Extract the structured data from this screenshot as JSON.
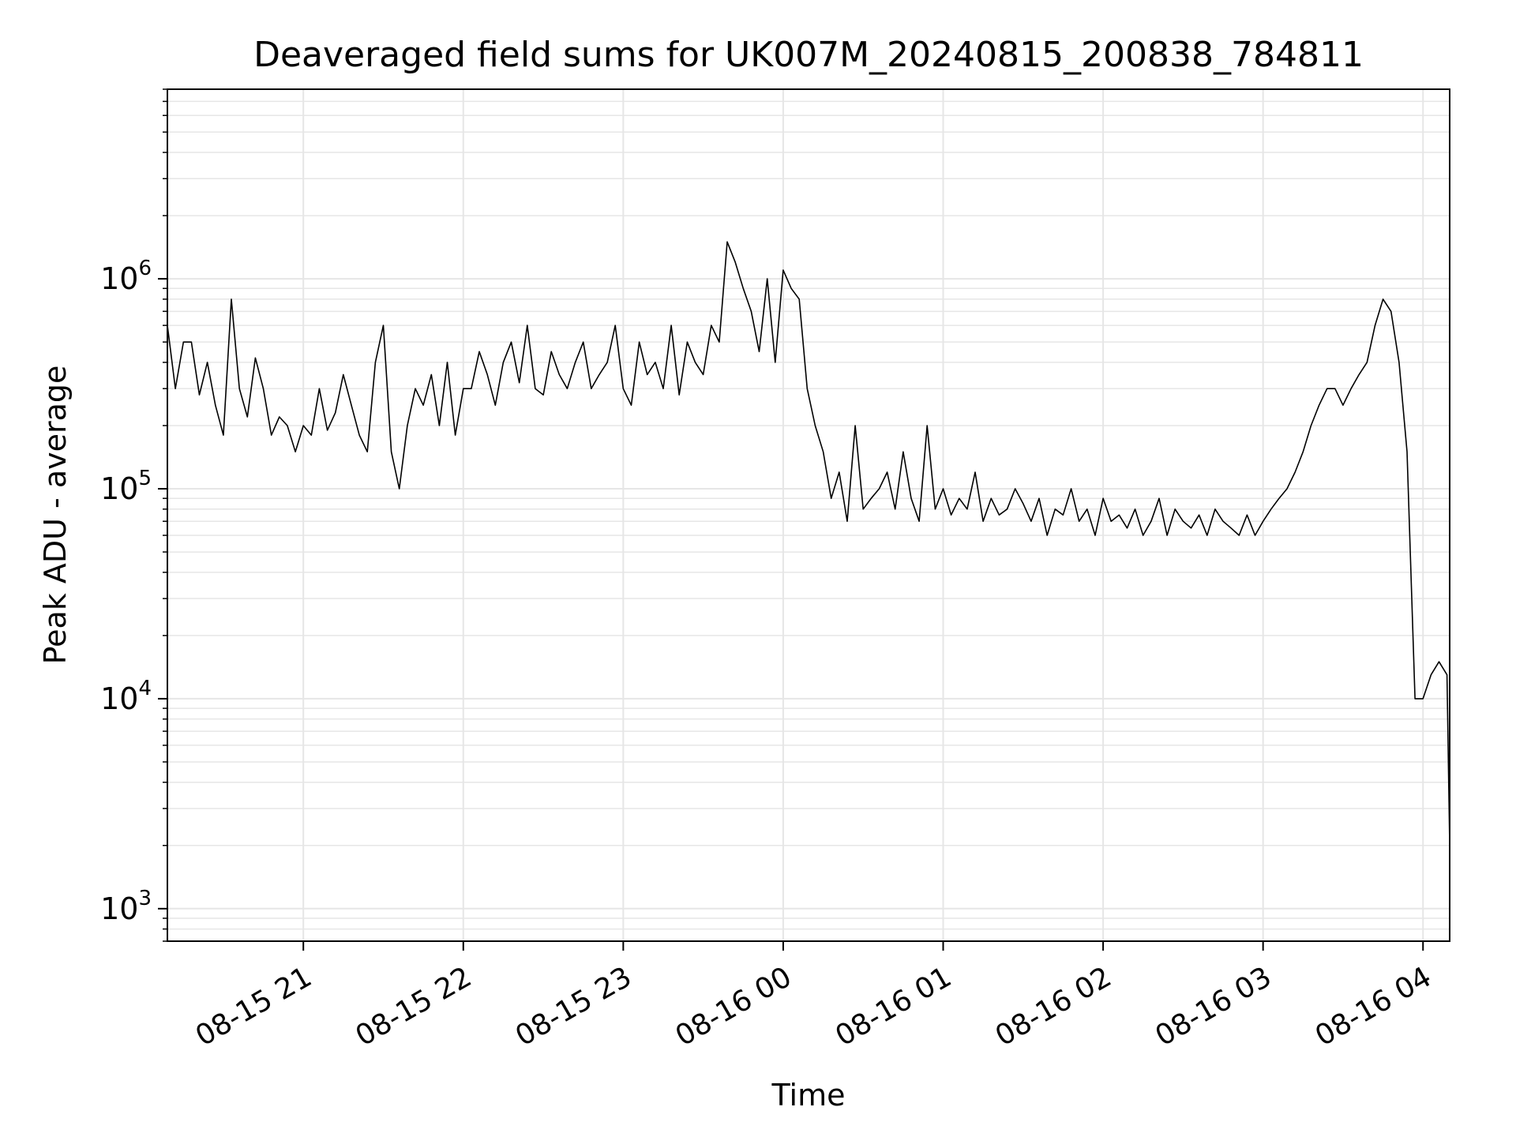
{
  "chart_data": {
    "type": "line",
    "title": "Deaveraged field sums for UK007M_20240815_200838_784811",
    "xlabel": "Time",
    "ylabel": "Peak ADU - average",
    "yscale": "log",
    "ylim": [
      700,
      8000000
    ],
    "xlim": [
      "2024-08-15T20:09:00",
      "2024-08-16T04:10:00"
    ],
    "grid": true,
    "line_color": "#000000",
    "grid_color": "#e6e6e6",
    "x_ticks": [
      {
        "t": "2024-08-15T21:00:00",
        "label": "08-15 21"
      },
      {
        "t": "2024-08-15T22:00:00",
        "label": "08-15 22"
      },
      {
        "t": "2024-08-15T23:00:00",
        "label": "08-15 23"
      },
      {
        "t": "2024-08-16T00:00:00",
        "label": "08-16 00"
      },
      {
        "t": "2024-08-16T01:00:00",
        "label": "08-16 01"
      },
      {
        "t": "2024-08-16T02:00:00",
        "label": "08-16 02"
      },
      {
        "t": "2024-08-16T03:00:00",
        "label": "08-16 03"
      },
      {
        "t": "2024-08-16T04:00:00",
        "label": "08-16 04"
      }
    ],
    "y_ticks": [
      {
        "value": 1000,
        "base": "10",
        "exp": "3"
      },
      {
        "value": 10000,
        "base": "10",
        "exp": "4"
      },
      {
        "value": 100000,
        "base": "10",
        "exp": "5"
      },
      {
        "value": 1000000,
        "base": "10",
        "exp": "6"
      }
    ],
    "series": [
      {
        "x": [
          "2024-08-15T20:09:00",
          "2024-08-15T20:12:00",
          "2024-08-15T20:15:00",
          "2024-08-15T20:18:00",
          "2024-08-15T20:21:00",
          "2024-08-15T20:24:00",
          "2024-08-15T20:27:00",
          "2024-08-15T20:30:00",
          "2024-08-15T20:33:00",
          "2024-08-15T20:36:00",
          "2024-08-15T20:39:00",
          "2024-08-15T20:42:00",
          "2024-08-15T20:45:00",
          "2024-08-15T20:48:00",
          "2024-08-15T20:51:00",
          "2024-08-15T20:54:00",
          "2024-08-15T20:57:00",
          "2024-08-15T21:00:00",
          "2024-08-15T21:03:00",
          "2024-08-15T21:06:00",
          "2024-08-15T21:09:00",
          "2024-08-15T21:12:00",
          "2024-08-15T21:15:00",
          "2024-08-15T21:18:00",
          "2024-08-15T21:21:00",
          "2024-08-15T21:24:00",
          "2024-08-15T21:27:00",
          "2024-08-15T21:30:00",
          "2024-08-15T21:33:00",
          "2024-08-15T21:36:00",
          "2024-08-15T21:39:00",
          "2024-08-15T21:42:00",
          "2024-08-15T21:45:00",
          "2024-08-15T21:48:00",
          "2024-08-15T21:51:00",
          "2024-08-15T21:54:00",
          "2024-08-15T21:57:00",
          "2024-08-15T22:00:00",
          "2024-08-15T22:03:00",
          "2024-08-15T22:06:00",
          "2024-08-15T22:09:00",
          "2024-08-15T22:12:00",
          "2024-08-15T22:15:00",
          "2024-08-15T22:18:00",
          "2024-08-15T22:21:00",
          "2024-08-15T22:24:00",
          "2024-08-15T22:27:00",
          "2024-08-15T22:30:00",
          "2024-08-15T22:33:00",
          "2024-08-15T22:36:00",
          "2024-08-15T22:39:00",
          "2024-08-15T22:42:00",
          "2024-08-15T22:45:00",
          "2024-08-15T22:48:00",
          "2024-08-15T22:51:00",
          "2024-08-15T22:54:00",
          "2024-08-15T22:57:00",
          "2024-08-15T23:00:00",
          "2024-08-15T23:03:00",
          "2024-08-15T23:06:00",
          "2024-08-15T23:09:00",
          "2024-08-15T23:12:00",
          "2024-08-15T23:15:00",
          "2024-08-15T23:18:00",
          "2024-08-15T23:21:00",
          "2024-08-15T23:24:00",
          "2024-08-15T23:27:00",
          "2024-08-15T23:30:00",
          "2024-08-15T23:33:00",
          "2024-08-15T23:36:00",
          "2024-08-15T23:39:00",
          "2024-08-15T23:42:00",
          "2024-08-15T23:45:00",
          "2024-08-15T23:48:00",
          "2024-08-15T23:51:00",
          "2024-08-15T23:54:00",
          "2024-08-15T23:57:00",
          "2024-08-16T00:00:00",
          "2024-08-16T00:03:00",
          "2024-08-16T00:06:00",
          "2024-08-16T00:09:00",
          "2024-08-16T00:12:00",
          "2024-08-16T00:15:00",
          "2024-08-16T00:18:00",
          "2024-08-16T00:21:00",
          "2024-08-16T00:24:00",
          "2024-08-16T00:27:00",
          "2024-08-16T00:30:00",
          "2024-08-16T00:33:00",
          "2024-08-16T00:36:00",
          "2024-08-16T00:39:00",
          "2024-08-16T00:42:00",
          "2024-08-16T00:45:00",
          "2024-08-16T00:48:00",
          "2024-08-16T00:51:00",
          "2024-08-16T00:54:00",
          "2024-08-16T00:57:00",
          "2024-08-16T01:00:00",
          "2024-08-16T01:03:00",
          "2024-08-16T01:06:00",
          "2024-08-16T01:09:00",
          "2024-08-16T01:12:00",
          "2024-08-16T01:15:00",
          "2024-08-16T01:18:00",
          "2024-08-16T01:21:00",
          "2024-08-16T01:24:00",
          "2024-08-16T01:27:00",
          "2024-08-16T01:30:00",
          "2024-08-16T01:33:00",
          "2024-08-16T01:36:00",
          "2024-08-16T01:39:00",
          "2024-08-16T01:42:00",
          "2024-08-16T01:45:00",
          "2024-08-16T01:48:00",
          "2024-08-16T01:51:00",
          "2024-08-16T01:54:00",
          "2024-08-16T01:57:00",
          "2024-08-16T02:00:00",
          "2024-08-16T02:03:00",
          "2024-08-16T02:06:00",
          "2024-08-16T02:09:00",
          "2024-08-16T02:12:00",
          "2024-08-16T02:15:00",
          "2024-08-16T02:18:00",
          "2024-08-16T02:21:00",
          "2024-08-16T02:24:00",
          "2024-08-16T02:27:00",
          "2024-08-16T02:30:00",
          "2024-08-16T02:33:00",
          "2024-08-16T02:36:00",
          "2024-08-16T02:39:00",
          "2024-08-16T02:42:00",
          "2024-08-16T02:45:00",
          "2024-08-16T02:48:00",
          "2024-08-16T02:51:00",
          "2024-08-16T02:54:00",
          "2024-08-16T02:57:00",
          "2024-08-16T03:00:00",
          "2024-08-16T03:03:00",
          "2024-08-16T03:06:00",
          "2024-08-16T03:09:00",
          "2024-08-16T03:12:00",
          "2024-08-16T03:15:00",
          "2024-08-16T03:18:00",
          "2024-08-16T03:21:00",
          "2024-08-16T03:24:00",
          "2024-08-16T03:27:00",
          "2024-08-16T03:30:00",
          "2024-08-16T03:33:00",
          "2024-08-16T03:36:00",
          "2024-08-16T03:39:00",
          "2024-08-16T03:42:00",
          "2024-08-16T03:45:00",
          "2024-08-16T03:48:00",
          "2024-08-16T03:51:00",
          "2024-08-16T03:54:00",
          "2024-08-16T03:57:00",
          "2024-08-16T04:00:00",
          "2024-08-16T04:03:00",
          "2024-08-16T04:06:00",
          "2024-08-16T04:09:00",
          "2024-08-16T04:10:00"
        ],
        "y": [
          600000,
          300000,
          500000,
          500000,
          280000,
          400000,
          250000,
          180000,
          800000,
          300000,
          220000,
          420000,
          300000,
          180000,
          220000,
          200000,
          150000,
          200000,
          180000,
          300000,
          190000,
          230000,
          350000,
          250000,
          180000,
          150000,
          400000,
          600000,
          150000,
          100000,
          200000,
          300000,
          250000,
          350000,
          200000,
          400000,
          180000,
          300000,
          300000,
          450000,
          350000,
          250000,
          400000,
          500000,
          320000,
          600000,
          300000,
          280000,
          450000,
          350000,
          300000,
          400000,
          500000,
          300000,
          350000,
          400000,
          600000,
          300000,
          250000,
          500000,
          350000,
          400000,
          300000,
          600000,
          280000,
          500000,
          400000,
          350000,
          600000,
          500000,
          1500000,
          1200000,
          900000,
          700000,
          450000,
          1000000,
          400000,
          1100000,
          900000,
          800000,
          300000,
          200000,
          150000,
          90000,
          120000,
          70000,
          200000,
          80000,
          90000,
          100000,
          120000,
          80000,
          150000,
          90000,
          70000,
          200000,
          80000,
          100000,
          75000,
          90000,
          80000,
          120000,
          70000,
          90000,
          75000,
          80000,
          100000,
          85000,
          70000,
          90000,
          60000,
          80000,
          75000,
          100000,
          70000,
          80000,
          60000,
          90000,
          70000,
          75000,
          65000,
          80000,
          60000,
          70000,
          90000,
          60000,
          80000,
          70000,
          65000,
          75000,
          60000,
          80000,
          70000,
          65000,
          60000,
          75000,
          60000,
          70000,
          80000,
          90000,
          100000,
          120000,
          150000,
          200000,
          250000,
          300000,
          300000,
          250000,
          300000,
          350000,
          400000,
          600000,
          800000,
          700000,
          400000,
          150000,
          10000,
          10000,
          13000,
          15000,
          13000,
          2000
        ]
      }
    ]
  }
}
